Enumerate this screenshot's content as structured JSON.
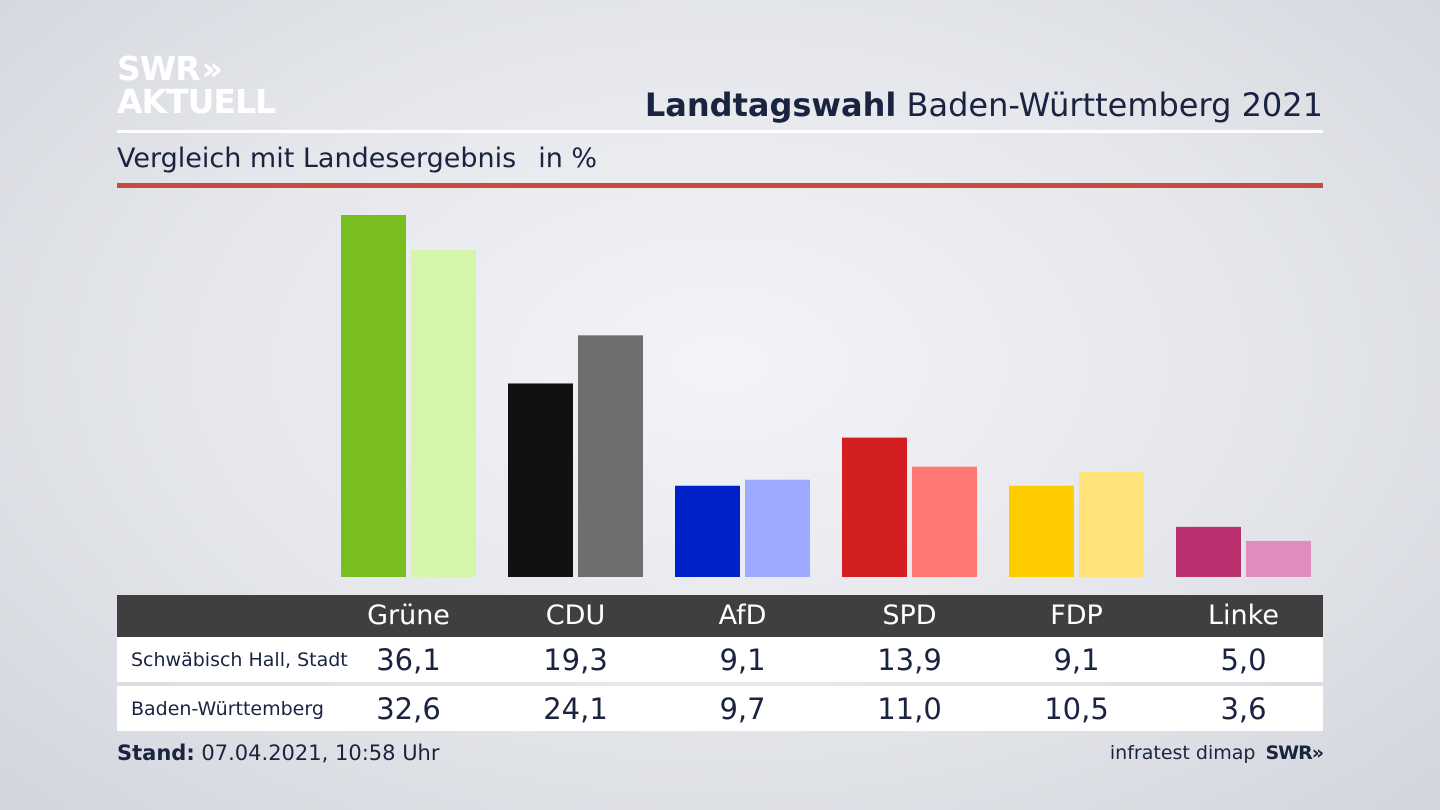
{
  "logo": {
    "line1": "SWR",
    "chevrons": "»",
    "line2": "AKTUELL"
  },
  "header": {
    "title_bold": "Landtagswahl",
    "title_rest": "Baden-Württemberg 2021",
    "subtitle": "Vergleich mit Landesergebnis",
    "unit": "in %"
  },
  "colors": {
    "accent_rule": "#cc4a3c",
    "table_header": "#3f3f3f"
  },
  "chart_data": {
    "type": "bar",
    "categories": [
      "Grüne",
      "CDU",
      "AfD",
      "SPD",
      "FDP",
      "Linke"
    ],
    "series": [
      {
        "name": "Schwäbisch Hall, Stadt",
        "values": [
          36.1,
          19.3,
          9.1,
          13.9,
          9.1,
          5.0
        ],
        "display": [
          "36,1",
          "19,3",
          "9,1",
          "13,9",
          "9,1",
          "5,0"
        ],
        "colors": [
          "#78be20",
          "#111111",
          "#0020c8",
          "#d41f22",
          "#ffcc00",
          "#b8306e"
        ]
      },
      {
        "name": "Baden-Württemberg",
        "values": [
          32.6,
          24.1,
          9.7,
          11.0,
          10.5,
          3.6
        ],
        "display": [
          "32,6",
          "24,1",
          "9,7",
          "11,0",
          "10,5",
          "3,6"
        ],
        "colors": [
          "#d4f5aa",
          "#6f6e6c",
          "#9eaaff",
          "#ff7872",
          "#ffe278",
          "#e08cbc"
        ]
      }
    ],
    "ylim": [
      0,
      36.1
    ],
    "grid": false,
    "legend": "table below chart"
  },
  "footer": {
    "stand_label": "Stand:",
    "stand_value": "07.04.2021, 10:58 Uhr",
    "source": "infratest dimap",
    "source_logo": "SWR»"
  }
}
